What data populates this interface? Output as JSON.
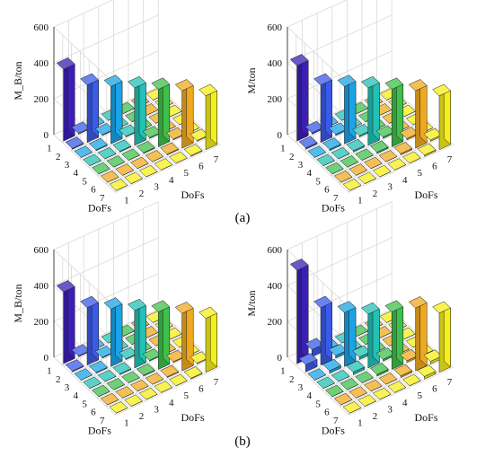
{
  "captions": {
    "a": "(a)",
    "b": "(b)"
  },
  "chart_data": [
    {
      "type": "bar3d",
      "panel": "a-left",
      "zlabel": "M_B/ton",
      "xlabel": "DoFs",
      "ylabel": "DoFs",
      "x_ticks": [
        "1",
        "2",
        "3",
        "4",
        "5",
        "6",
        "7"
      ],
      "y_ticks": [
        "1",
        "2",
        "3",
        "4",
        "5",
        "6",
        "7"
      ],
      "z_ticks": [
        "0",
        "200",
        "400",
        "600"
      ],
      "zlim": [
        0,
        600
      ],
      "diagonal": [
        400,
        320,
        320,
        320,
        320,
        320,
        300
      ],
      "offdiag_band": [
        5,
        5,
        5,
        5,
        5,
        5
      ],
      "bar_colors": [
        "#3b1fb5",
        "#3a5ae8",
        "#1aa4e6",
        "#21c1b5",
        "#3ec04b",
        "#f0a91e",
        "#f5ef1a"
      ]
    },
    {
      "type": "bar3d",
      "panel": "a-right",
      "zlabel": "M/ton",
      "xlabel": "DoFs",
      "ylabel": "DoFs",
      "x_ticks": [
        "1",
        "2",
        "3",
        "4",
        "5",
        "6",
        "7"
      ],
      "y_ticks": [
        "1",
        "2",
        "3",
        "4",
        "5",
        "6",
        "7"
      ],
      "z_ticks": [
        "0",
        "200",
        "400",
        "600"
      ],
      "zlim": [
        0,
        600
      ],
      "diagonal": [
        420,
        320,
        320,
        320,
        320,
        320,
        300
      ],
      "offdiag_band": [
        8,
        8,
        8,
        8,
        8,
        8
      ],
      "bar_colors": [
        "#3b1fb5",
        "#3a5ae8",
        "#1aa4e6",
        "#21c1b5",
        "#3ec04b",
        "#f0a91e",
        "#f5ef1a"
      ]
    },
    {
      "type": "bar3d",
      "panel": "b-left",
      "zlabel": "M_B/ton",
      "xlabel": "DoFs",
      "ylabel": "DoFs",
      "x_ticks": [
        "1",
        "2",
        "3",
        "4",
        "5",
        "6",
        "7"
      ],
      "y_ticks": [
        "1",
        "2",
        "3",
        "4",
        "5",
        "6",
        "7"
      ],
      "z_ticks": [
        "0",
        "200",
        "400",
        "600"
      ],
      "zlim": [
        0,
        600
      ],
      "diagonal": [
        400,
        320,
        320,
        320,
        320,
        320,
        300
      ],
      "offdiag_band": [
        5,
        5,
        5,
        5,
        5,
        5
      ],
      "bar_colors": [
        "#3b1fb5",
        "#3a5ae8",
        "#1aa4e6",
        "#21c1b5",
        "#3ec04b",
        "#f0a91e",
        "#f5ef1a"
      ]
    },
    {
      "type": "bar3d",
      "panel": "b-right",
      "zlabel": "M/ton",
      "xlabel": "DoFs",
      "ylabel": "DoFs",
      "x_ticks": [
        "1",
        "2",
        "3",
        "4",
        "5",
        "6",
        "7"
      ],
      "y_ticks": [
        "1",
        "2",
        "3",
        "4",
        "5",
        "6",
        "7"
      ],
      "z_ticks": [
        "0",
        "200",
        "400",
        "600"
      ],
      "zlim": [
        0,
        600
      ],
      "diagonal": [
        520,
        320,
        300,
        300,
        320,
        350,
        330
      ],
      "offdiag_band": [
        40,
        15,
        15,
        10,
        10,
        15
      ],
      "bar_colors": [
        "#3b1fb5",
        "#3a5ae8",
        "#1aa4e6",
        "#21c1b5",
        "#3ec04b",
        "#f0a91e",
        "#f5ef1a"
      ]
    }
  ]
}
